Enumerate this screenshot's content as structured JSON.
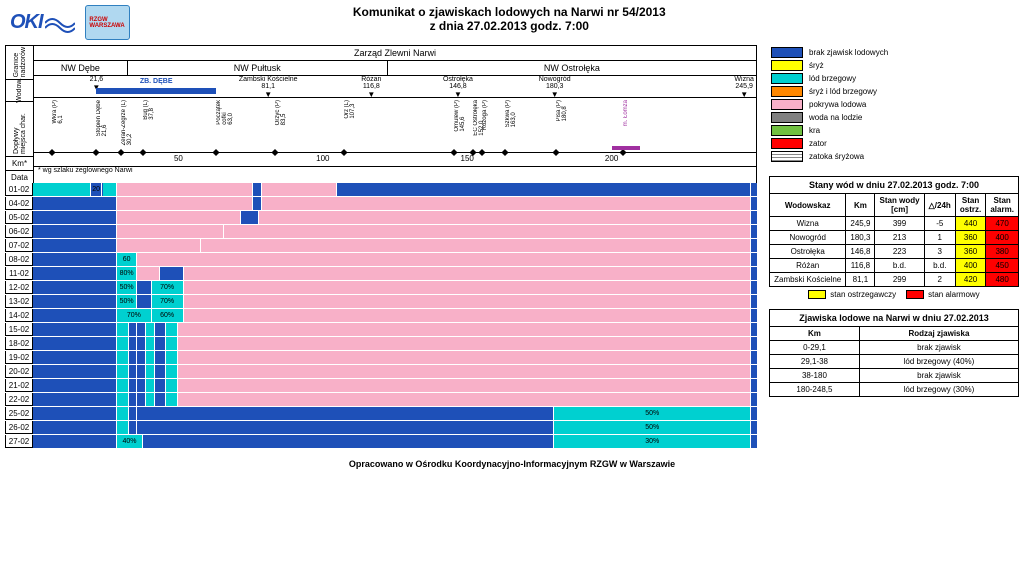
{
  "title1": "Komunikat o zjawiskach lodowych na Narwi nr 54/2013",
  "title2": "z dnia 27.02.2013 godz. 7:00",
  "zarzad": "Zarząd Zlewni Narwi",
  "footer": "Opracowano w Ośrodku Koordynacyjno-Informacyjnym RZGW w Warszawie",
  "km_note": "* wg szlaku żeglownego Narwi",
  "axis": {
    "left_labels": {
      "granice": "Granice\nnadzorów",
      "wodow": "Wodow.",
      "doplyw": "Dopływy\nmiejsca char.",
      "km": "Km*",
      "data": " Data"
    },
    "nw_sections": [
      {
        "label": "NW Dębe",
        "width_pct": 13
      },
      {
        "label": "NW Pułtusk",
        "width_pct": 36
      },
      {
        "label": "NW Ostrołęka",
        "width_pct": 51
      }
    ],
    "km_start": 0,
    "km_end": 250,
    "km_ticks": [
      50,
      100,
      150,
      200
    ],
    "wodow_markers": [
      {
        "km": 21.6,
        "label": "21,6",
        "sub": "ZB. DĘBE",
        "sub2": "63,0"
      },
      {
        "km": 81.1,
        "label": "Zambski Kościelne\n81,1"
      },
      {
        "km": 116.8,
        "label": "Różan\n116,8"
      },
      {
        "km": 146.8,
        "label": "Ostrołęka\n146,8"
      },
      {
        "km": 180.3,
        "label": "Nowogród\n180,3"
      },
      {
        "km": 245.9,
        "label": "Wizna\n245,9"
      }
    ],
    "zb_debe": {
      "from": 21.6,
      "to": 63.0
    },
    "doplyw_markers": [
      {
        "km": 6.1,
        "label": "Wkra (P)\n6,1"
      },
      {
        "km": 21.6,
        "label": "Stopień Dębe\n21,6"
      },
      {
        "km": 30.2,
        "label": "Zeran-Zegrze (L)\n30,2"
      },
      {
        "km": 37.8,
        "label": "Bug (L)\n37,8"
      },
      {
        "km": 63.0,
        "label": "Początek\ncofki\n63,0"
      },
      {
        "km": 83.5,
        "label": "Orzyc (P)\n83,5"
      },
      {
        "km": 107.3,
        "label": "Orz (L)\n107,3"
      },
      {
        "km": 145.6,
        "label": "Omulew (P)\n145,6"
      },
      {
        "km": 152.0,
        "label": "EC Ostrołęka\n152,0"
      },
      {
        "km": 155,
        "label": "Rozoga (P)"
      },
      {
        "km": 163.0,
        "label": "Szkwa (P)\n163,0"
      },
      {
        "km": 180.8,
        "label": "Pisa (P)\n180,8"
      },
      {
        "km": 204,
        "label": "m. Łomża",
        "color": "#a030a0"
      }
    ]
  },
  "colors": {
    "brak": "#1e50b8",
    "sryz": "#ffff00",
    "lod_brzeg": "#00d0d0",
    "sryz_lod": "#ff8800",
    "pokrywa": "#f8b0c8",
    "woda_lod": "#808080",
    "kra": "#70c040",
    "zator": "#ff0000",
    "zatoka_hatch": "hatch",
    "ostrz": "#ffff00",
    "alarm": "#ff0000"
  },
  "legend": [
    {
      "color": "#1e50b8",
      "label": "brak zjawisk lodowych"
    },
    {
      "color": "#ffff00",
      "label": "śryż"
    },
    {
      "color": "#00d0d0",
      "label": "lód brzegowy"
    },
    {
      "color": "#ff8800",
      "label": "śryż i lód brzegowy"
    },
    {
      "color": "#f8b0c8",
      "label": "pokrywa lodowa"
    },
    {
      "color": "#808080",
      "label": "woda na lodzie"
    },
    {
      "color": "#70c040",
      "label": "kra"
    },
    {
      "color": "#ff0000",
      "label": "zator"
    },
    {
      "color": "hatch",
      "label": "zatoka śryżowa"
    }
  ],
  "gantt": {
    "rows": [
      {
        "date": "01-02",
        "segs": [
          {
            "f": 0,
            "t": 20,
            "c": "#00d0d0"
          },
          {
            "f": 20,
            "t": 24,
            "c": "#1e50b8",
            "lbl": "20"
          },
          {
            "f": 24,
            "t": 29,
            "c": "#00d0d0"
          },
          {
            "f": 29,
            "t": 76,
            "c": "#f8b0c8"
          },
          {
            "f": 76,
            "t": 79,
            "c": "#1e50b8"
          },
          {
            "f": 79,
            "t": 105,
            "c": "#f8b0c8"
          },
          {
            "f": 105,
            "t": 248,
            "c": "#1e50b8"
          }
        ]
      },
      {
        "date": "04-02",
        "segs": [
          {
            "f": 0,
            "t": 29,
            "c": "#1e50b8"
          },
          {
            "f": 29,
            "t": 76,
            "c": "#f8b0c8"
          },
          {
            "f": 76,
            "t": 79,
            "c": "#1e50b8"
          },
          {
            "f": 79,
            "t": 248,
            "c": "#f8b0c8"
          }
        ]
      },
      {
        "date": "05-02",
        "segs": [
          {
            "f": 0,
            "t": 29,
            "c": "#1e50b8"
          },
          {
            "f": 29,
            "t": 72,
            "c": "#f8b0c8"
          },
          {
            "f": 72,
            "t": 78,
            "c": "#1e50b8"
          },
          {
            "f": 78,
            "t": 248,
            "c": "#f8b0c8"
          }
        ]
      },
      {
        "date": "06-02",
        "segs": [
          {
            "f": 0,
            "t": 29,
            "c": "#1e50b8"
          },
          {
            "f": 29,
            "t": 66,
            "c": "#f8b0c8"
          },
          {
            "f": 66,
            "t": 248,
            "c": "#f8b0c8"
          }
        ]
      },
      {
        "date": "07-02",
        "segs": [
          {
            "f": 0,
            "t": 29,
            "c": "#1e50b8"
          },
          {
            "f": 29,
            "t": 58,
            "c": "#f8b0c8"
          },
          {
            "f": 58,
            "t": 248,
            "c": "#f8b0c8"
          }
        ]
      },
      {
        "date": "08-02",
        "segs": [
          {
            "f": 0,
            "t": 29,
            "c": "#1e50b8"
          },
          {
            "f": 29,
            "t": 36,
            "c": "#00d0d0",
            "lbl": "60"
          },
          {
            "f": 36,
            "t": 248,
            "c": "#f8b0c8"
          }
        ]
      },
      {
        "date": "11-02",
        "segs": [
          {
            "f": 0,
            "t": 29,
            "c": "#1e50b8"
          },
          {
            "f": 29,
            "t": 36,
            "c": "#00d0d0",
            "lbl": "80%"
          },
          {
            "f": 36,
            "t": 44,
            "c": "#f8b0c8"
          },
          {
            "f": 44,
            "t": 52,
            "c": "#1e50b8"
          },
          {
            "f": 52,
            "t": 248,
            "c": "#f8b0c8"
          }
        ]
      },
      {
        "date": "12-02",
        "segs": [
          {
            "f": 0,
            "t": 29,
            "c": "#1e50b8"
          },
          {
            "f": 29,
            "t": 36,
            "c": "#00d0d0",
            "lbl": "50%"
          },
          {
            "f": 36,
            "t": 41,
            "c": "#1e50b8"
          },
          {
            "f": 41,
            "t": 52,
            "c": "#00d0d0",
            "lbl": "70%"
          },
          {
            "f": 52,
            "t": 248,
            "c": "#f8b0c8"
          }
        ]
      },
      {
        "date": "13-02",
        "segs": [
          {
            "f": 0,
            "t": 29,
            "c": "#1e50b8"
          },
          {
            "f": 29,
            "t": 36,
            "c": "#00d0d0",
            "lbl": "50%"
          },
          {
            "f": 36,
            "t": 41,
            "c": "#1e50b8"
          },
          {
            "f": 41,
            "t": 52,
            "c": "#00d0d0",
            "lbl": "70%"
          },
          {
            "f": 52,
            "t": 248,
            "c": "#f8b0c8"
          }
        ]
      },
      {
        "date": "14-02",
        "segs": [
          {
            "f": 0,
            "t": 29,
            "c": "#1e50b8"
          },
          {
            "f": 29,
            "t": 41,
            "c": "#00d0d0",
            "lbl": "70%"
          },
          {
            "f": 41,
            "t": 52,
            "c": "#00d0d0",
            "lbl": "60%"
          },
          {
            "f": 52,
            "t": 248,
            "c": "#f8b0c8"
          }
        ]
      },
      {
        "date": "15-02",
        "segs": [
          {
            "f": 0,
            "t": 29,
            "c": "#1e50b8"
          },
          {
            "f": 29,
            "t": 33,
            "c": "#00d0d0"
          },
          {
            "f": 33,
            "t": 36,
            "c": "#1e50b8"
          },
          {
            "f": 36,
            "t": 39,
            "c": "#1e50b8"
          },
          {
            "f": 39,
            "t": 42,
            "c": "#00d0d0"
          },
          {
            "f": 42,
            "t": 46,
            "c": "#1e50b8"
          },
          {
            "f": 46,
            "t": 50,
            "c": "#00d0d0"
          },
          {
            "f": 50,
            "t": 248,
            "c": "#f8b0c8"
          }
        ]
      },
      {
        "date": "18-02",
        "segs": [
          {
            "f": 0,
            "t": 29,
            "c": "#1e50b8"
          },
          {
            "f": 29,
            "t": 33,
            "c": "#00d0d0"
          },
          {
            "f": 33,
            "t": 36,
            "c": "#1e50b8"
          },
          {
            "f": 36,
            "t": 39,
            "c": "#1e50b8"
          },
          {
            "f": 39,
            "t": 42,
            "c": "#00d0d0"
          },
          {
            "f": 42,
            "t": 46,
            "c": "#1e50b8"
          },
          {
            "f": 46,
            "t": 50,
            "c": "#00d0d0"
          },
          {
            "f": 50,
            "t": 248,
            "c": "#f8b0c8"
          }
        ]
      },
      {
        "date": "19-02",
        "segs": [
          {
            "f": 0,
            "t": 29,
            "c": "#1e50b8"
          },
          {
            "f": 29,
            "t": 33,
            "c": "#00d0d0"
          },
          {
            "f": 33,
            "t": 36,
            "c": "#1e50b8"
          },
          {
            "f": 36,
            "t": 39,
            "c": "#1e50b8"
          },
          {
            "f": 39,
            "t": 42,
            "c": "#00d0d0"
          },
          {
            "f": 42,
            "t": 46,
            "c": "#1e50b8"
          },
          {
            "f": 46,
            "t": 50,
            "c": "#00d0d0"
          },
          {
            "f": 50,
            "t": 248,
            "c": "#f8b0c8"
          }
        ]
      },
      {
        "date": "20-02",
        "segs": [
          {
            "f": 0,
            "t": 29,
            "c": "#1e50b8"
          },
          {
            "f": 29,
            "t": 33,
            "c": "#00d0d0"
          },
          {
            "f": 33,
            "t": 36,
            "c": "#1e50b8"
          },
          {
            "f": 36,
            "t": 39,
            "c": "#1e50b8"
          },
          {
            "f": 39,
            "t": 42,
            "c": "#00d0d0"
          },
          {
            "f": 42,
            "t": 46,
            "c": "#1e50b8"
          },
          {
            "f": 46,
            "t": 50,
            "c": "#00d0d0"
          },
          {
            "f": 50,
            "t": 248,
            "c": "#f8b0c8"
          }
        ]
      },
      {
        "date": "21-02",
        "segs": [
          {
            "f": 0,
            "t": 29,
            "c": "#1e50b8"
          },
          {
            "f": 29,
            "t": 33,
            "c": "#00d0d0"
          },
          {
            "f": 33,
            "t": 36,
            "c": "#1e50b8"
          },
          {
            "f": 36,
            "t": 39,
            "c": "#1e50b8"
          },
          {
            "f": 39,
            "t": 42,
            "c": "#00d0d0"
          },
          {
            "f": 42,
            "t": 46,
            "c": "#1e50b8"
          },
          {
            "f": 46,
            "t": 50,
            "c": "#00d0d0"
          },
          {
            "f": 50,
            "t": 248,
            "c": "#f8b0c8"
          }
        ]
      },
      {
        "date": "22-02",
        "segs": [
          {
            "f": 0,
            "t": 29,
            "c": "#1e50b8"
          },
          {
            "f": 29,
            "t": 33,
            "c": "#00d0d0"
          },
          {
            "f": 33,
            "t": 36,
            "c": "#1e50b8"
          },
          {
            "f": 36,
            "t": 39,
            "c": "#1e50b8"
          },
          {
            "f": 39,
            "t": 42,
            "c": "#00d0d0"
          },
          {
            "f": 42,
            "t": 46,
            "c": "#1e50b8"
          },
          {
            "f": 46,
            "t": 50,
            "c": "#00d0d0"
          },
          {
            "f": 50,
            "t": 248,
            "c": "#f8b0c8"
          }
        ]
      },
      {
        "date": "25-02",
        "segs": [
          {
            "f": 0,
            "t": 29,
            "c": "#1e50b8"
          },
          {
            "f": 29,
            "t": 33,
            "c": "#00d0d0"
          },
          {
            "f": 33,
            "t": 36,
            "c": "#1e50b8"
          },
          {
            "f": 36,
            "t": 180,
            "c": "#1e50b8"
          },
          {
            "f": 180,
            "t": 248,
            "c": "#00d0d0",
            "lbl": "50%"
          }
        ]
      },
      {
        "date": "26-02",
        "segs": [
          {
            "f": 0,
            "t": 29,
            "c": "#1e50b8"
          },
          {
            "f": 29,
            "t": 33,
            "c": "#00d0d0"
          },
          {
            "f": 33,
            "t": 36,
            "c": "#1e50b8"
          },
          {
            "f": 36,
            "t": 180,
            "c": "#1e50b8"
          },
          {
            "f": 180,
            "t": 248,
            "c": "#00d0d0",
            "lbl": "50%"
          }
        ]
      },
      {
        "date": "27-02",
        "segs": [
          {
            "f": 0,
            "t": 29,
            "c": "#1e50b8"
          },
          {
            "f": 29,
            "t": 38,
            "c": "#00d0d0",
            "lbl": "40%"
          },
          {
            "f": 38,
            "t": 180,
            "c": "#1e50b8"
          },
          {
            "f": 180,
            "t": 248,
            "c": "#00d0d0",
            "lbl": "30%"
          }
        ]
      }
    ]
  },
  "stany_table": {
    "title": "Stany wód w dniu 27.02.2013 godz. 7:00",
    "headers": [
      "Wodowskaz",
      "Km",
      "Stan wody\n[cm]",
      "△/24h",
      "Stan\nostrz.",
      "Stan\nalarm."
    ],
    "rows": [
      [
        "Wizna",
        "245,9",
        "399",
        "-5",
        "440",
        "470"
      ],
      [
        "Nowogród",
        "180,3",
        "213",
        "1",
        "360",
        "400"
      ],
      [
        "Ostrołęka",
        "146,8",
        "223",
        "3",
        "360",
        "380"
      ],
      [
        "Różan",
        "116,8",
        "b.d.",
        "b.d.",
        "400",
        "450"
      ],
      [
        "Zambski Kościelne",
        "81,1",
        "299",
        "2",
        "420",
        "480"
      ]
    ],
    "mini_legend": [
      {
        "c": "#ffff00",
        "t": "stan ostrzegawczy"
      },
      {
        "c": "#ff0000",
        "t": "stan alarmowy"
      }
    ]
  },
  "zjaw_table": {
    "title": "Zjawiska lodowe na Narwi w dniu 27.02.2013",
    "headers": [
      "Km",
      "Rodzaj zjawiska"
    ],
    "rows": [
      [
        "0-29,1",
        "brak zjawisk"
      ],
      [
        "29,1-38",
        "lód brzegowy (40%)"
      ],
      [
        "38-180",
        "brak zjawisk"
      ],
      [
        "180-248,5",
        "lód brzegowy (30%)"
      ]
    ]
  }
}
